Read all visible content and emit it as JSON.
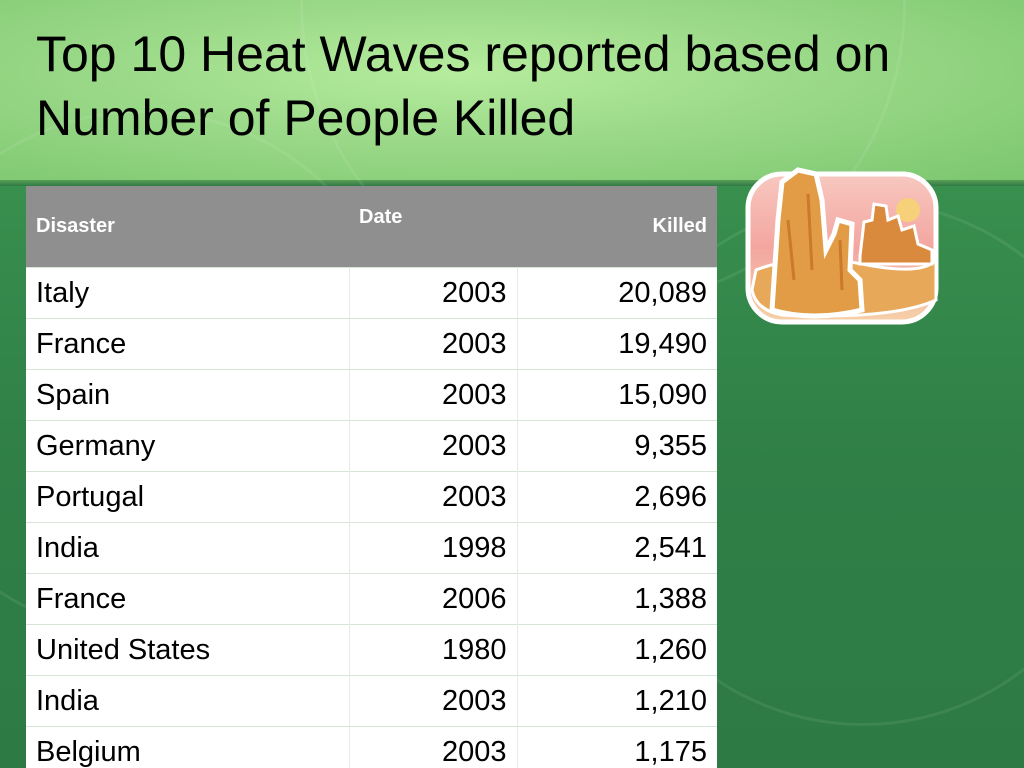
{
  "slide": {
    "title": "Top 10 Heat Waves reported based on Number of People Killed"
  },
  "table": {
    "headers": [
      "Disaster",
      "Date",
      "Killed"
    ],
    "rows": [
      [
        "Italy",
        "2003",
        "20,089"
      ],
      [
        "France",
        "2003",
        "19,490"
      ],
      [
        "Spain",
        "2003",
        "15,090"
      ],
      [
        "Germany",
        "2003",
        "9,355"
      ],
      [
        "Portugal",
        "2003",
        "2,696"
      ],
      [
        "India",
        "1998",
        "2,541"
      ],
      [
        "France",
        "2006",
        "1,388"
      ],
      [
        "United States",
        "1980",
        "1,260"
      ],
      [
        "India",
        "2003",
        "1,210"
      ],
      [
        "Belgium",
        "2003",
        "1,175"
      ]
    ]
  },
  "colors": {
    "header_bg": "#8f8f8f",
    "title_band": "#9ad988",
    "background": "#3a8a4f"
  },
  "clipart": {
    "icon": "desert-mesa-icon"
  }
}
